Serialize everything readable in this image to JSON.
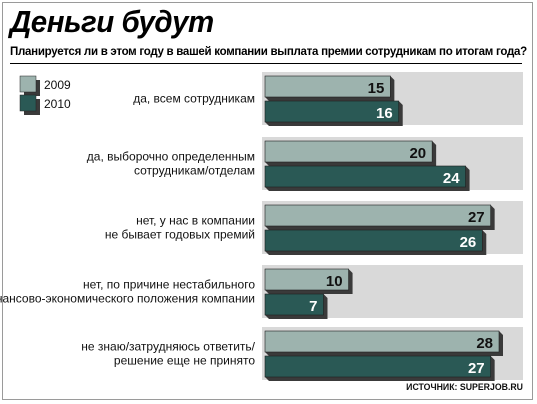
{
  "title": "Деньги будут",
  "subtitle": "Планируется ли в этом году в вашей компании выплата премии сотрудникам по итогам года?",
  "source": "ИСТОЧНИК: SUPERJOB.RU",
  "colors": {
    "bar_2009": "#9db3ae",
    "bar_2010": "#2a5955",
    "value_2009": "#111111",
    "value_2010": "#ffffff",
    "bar_shadow": "#3a3a3a"
  },
  "chart_data": {
    "type": "bar",
    "orientation": "horizontal",
    "title": "Деньги будут",
    "subtitle": "Планируется ли в этом году в вашей компании выплата премии сотрудникам по итогам года?",
    "categories": [
      [
        "да, всем сотрудникам"
      ],
      [
        "да, выборочно определенным",
        "сотрудникам/отделам"
      ],
      [
        "нет, у нас в компании",
        "не бывает годовых премий"
      ],
      [
        "нет, по причине нестабильного",
        "финансово-экономического положения компании"
      ],
      [
        "не знаю/затрудняюсь ответить/",
        "решение еще не принято"
      ]
    ],
    "series": [
      {
        "name": "2009",
        "values": [
          15,
          20,
          27,
          10,
          28
        ]
      },
      {
        "name": "2010",
        "values": [
          16,
          24,
          26,
          7,
          27
        ]
      }
    ],
    "xlim": [
      0,
      28
    ],
    "legend": "top-left",
    "grid": false,
    "xlabel": "",
    "ylabel": ""
  }
}
